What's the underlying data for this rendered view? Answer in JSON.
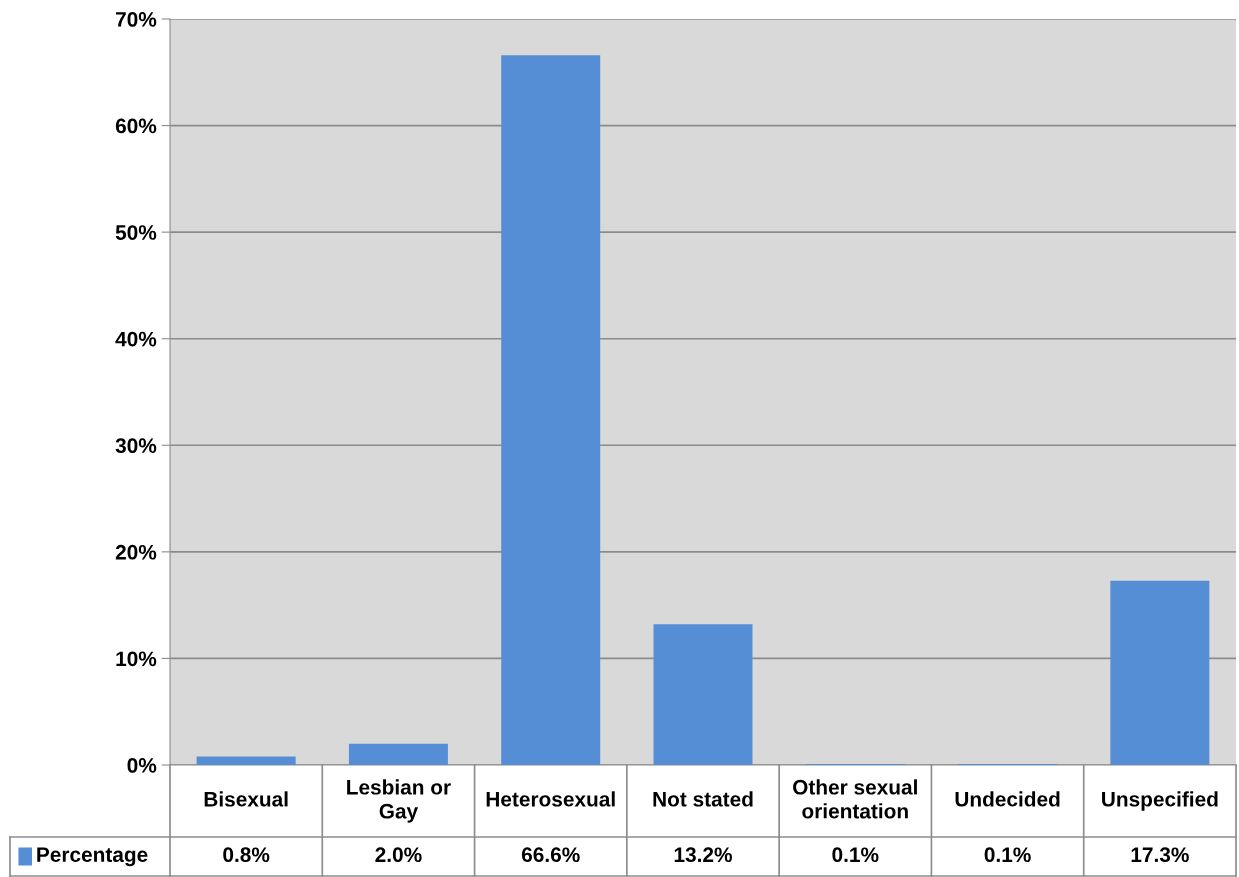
{
  "chart_data": {
    "type": "bar",
    "categories": [
      "Bisexual",
      "Lesbian or Gay",
      "Heterosexual",
      "Not stated",
      "Other sexual orientation",
      "Undecided",
      "Unspecified"
    ],
    "series": [
      {
        "name": "Percentage",
        "color": "#558ed5",
        "values": [
          0.8,
          2.0,
          66.6,
          13.2,
          0.1,
          0.1,
          17.3
        ],
        "value_labels": [
          "0.8%",
          "2.0%",
          "66.6%",
          "13.2%",
          "0.1%",
          "0.1%",
          "17.3%"
        ]
      }
    ],
    "ylim": [
      0,
      70
    ],
    "yticks": [
      {
        "value": 0,
        "label": "0%"
      },
      {
        "value": 10,
        "label": "10%"
      },
      {
        "value": 20,
        "label": "20%"
      },
      {
        "value": 30,
        "label": "30%"
      },
      {
        "value": 40,
        "label": "40%"
      },
      {
        "value": 50,
        "label": "50%"
      },
      {
        "value": 60,
        "label": "60%"
      },
      {
        "value": 70,
        "label": "70%"
      }
    ],
    "grid": "y",
    "legend": "bottom"
  }
}
